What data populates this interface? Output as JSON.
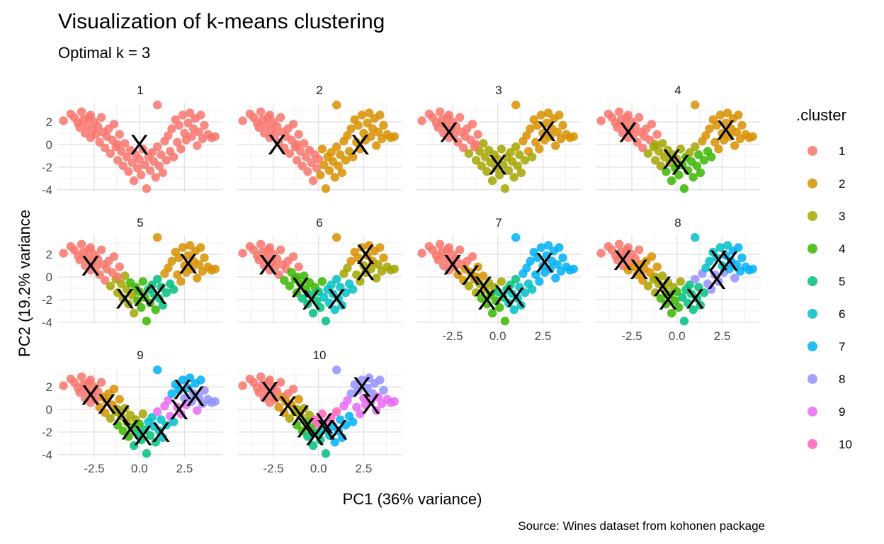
{
  "chart_data": {
    "type": "scatter",
    "title": "Visualization of k-means clustering",
    "subtitle": "Optimal k = 3",
    "xlabel": "PC1 (36% variance)",
    "ylabel": "PC2 (19.2% variance",
    "caption": "Source: Wines dataset from kohonen package",
    "xlim": [
      -4.5,
      4.6
    ],
    "ylim": [
      -4.2,
      3.7
    ],
    "x_ticks": [
      -2.5,
      0.0,
      2.5
    ],
    "x_tick_labels": [
      "-2.5",
      "0.0",
      "2.5"
    ],
    "y_ticks": [
      -4,
      -2,
      0,
      2
    ],
    "y_tick_labels": [
      "-4",
      "-2",
      "0",
      "2"
    ],
    "grid": true,
    "legend": {
      "title": ".cluster",
      "position": "right",
      "entries": [
        "1",
        "2",
        "3",
        "4",
        "5",
        "6",
        "7",
        "8",
        "9",
        "10"
      ]
    },
    "colors": [
      "#F8766D",
      "#D89000",
      "#A3A500",
      "#39B600",
      "#00BF7D",
      "#00BFC4",
      "#00B0F6",
      "#9590FF",
      "#E76BF3",
      "#FF62BC"
    ],
    "centroid_marker": "X",
    "panels": [
      {
        "label": "1",
        "centers": [
          [
            0.0,
            0.0
          ]
        ]
      },
      {
        "label": "2",
        "centers": [
          [
            -2.3,
            0.0
          ],
          [
            2.3,
            0.0
          ]
        ]
      },
      {
        "label": "3",
        "centers": [
          [
            -2.7,
            1.1
          ],
          [
            2.7,
            1.2
          ],
          [
            0.0,
            -1.8
          ]
        ]
      },
      {
        "label": "4",
        "centers": [
          [
            -2.7,
            1.1
          ],
          [
            2.7,
            1.3
          ],
          [
            -0.3,
            -1.3
          ],
          [
            0.2,
            -1.8
          ]
        ]
      },
      {
        "label": "5",
        "centers": [
          [
            -2.7,
            1.0
          ],
          [
            2.7,
            1.2
          ],
          [
            -0.8,
            -1.9
          ],
          [
            0.2,
            -1.7
          ],
          [
            1.0,
            -1.5
          ]
        ]
      },
      {
        "label": "6",
        "centers": [
          [
            -2.8,
            1.1
          ],
          [
            2.6,
            2.0
          ],
          [
            2.6,
            0.6
          ],
          [
            -1.0,
            -0.9
          ],
          [
            -0.4,
            -2.0
          ],
          [
            1.0,
            -1.9
          ]
        ]
      },
      {
        "label": "7",
        "centers": [
          [
            -2.5,
            1.1
          ],
          [
            -1.5,
            0.2
          ],
          [
            -0.8,
            -0.8
          ],
          [
            -0.6,
            -2.0
          ],
          [
            0.3,
            -1.6
          ],
          [
            1.0,
            -1.8
          ],
          [
            2.6,
            1.3
          ]
        ]
      },
      {
        "label": "8",
        "centers": [
          [
            -3.0,
            1.5
          ],
          [
            -2.1,
            0.7
          ],
          [
            -0.8,
            -0.8
          ],
          [
            -0.5,
            -2.0
          ],
          [
            1.0,
            -1.9
          ],
          [
            2.3,
            1.5
          ],
          [
            2.9,
            1.4
          ],
          [
            2.2,
            -0.2
          ]
        ]
      },
      {
        "label": "9",
        "centers": [
          [
            -2.7,
            1.3
          ],
          [
            -1.8,
            0.5
          ],
          [
            -1.0,
            -0.5
          ],
          [
            -0.5,
            -1.8
          ],
          [
            0.2,
            -2.3
          ],
          [
            1.2,
            -2.0
          ],
          [
            2.4,
            1.8
          ],
          [
            3.1,
            1.2
          ],
          [
            2.2,
            0.0
          ]
        ]
      },
      {
        "label": "10",
        "centers": [
          [
            -2.7,
            1.6
          ],
          [
            -1.7,
            0.3
          ],
          [
            -1.0,
            -0.5
          ],
          [
            -0.7,
            -1.6
          ],
          [
            -0.2,
            -2.3
          ],
          [
            0.4,
            -1.8
          ],
          [
            1.1,
            -1.8
          ],
          [
            2.4,
            2.0
          ],
          [
            2.9,
            0.5
          ],
          [
            0.3,
            -1.2
          ]
        ]
      }
    ],
    "points_note": "Each panel plots the same wine observations (PC1, PC2) colored by cluster assignment for that k; points listed below as [PC1, PC2].",
    "points": [
      [
        -4.2,
        2.1
      ],
      [
        -3.8,
        2.7
      ],
      [
        -3.6,
        2.4
      ],
      [
        -3.4,
        1.9
      ],
      [
        -3.3,
        1.5
      ],
      [
        -3.1,
        2.2
      ],
      [
        -3.0,
        1.0
      ],
      [
        -2.9,
        1.7
      ],
      [
        -2.8,
        2.4
      ],
      [
        -2.7,
        0.6
      ],
      [
        -2.6,
        1.3
      ],
      [
        -2.5,
        2.0
      ],
      [
        -2.4,
        0.9
      ],
      [
        -2.3,
        1.6
      ],
      [
        -2.2,
        0.2
      ],
      [
        -2.1,
        2.4
      ],
      [
        -2.0,
        1.1
      ],
      [
        -1.9,
        -0.3
      ],
      [
        -1.8,
        0.7
      ],
      [
        -1.7,
        1.4
      ],
      [
        -1.6,
        -0.8
      ],
      [
        -1.5,
        0.4
      ],
      [
        -1.4,
        1.8
      ],
      [
        -1.3,
        -0.2
      ],
      [
        -1.2,
        -1.4
      ],
      [
        -1.1,
        0.9
      ],
      [
        -1.0,
        -0.6
      ],
      [
        -0.9,
        -1.9
      ],
      [
        -0.8,
        0.1
      ],
      [
        -0.7,
        -1.1
      ],
      [
        -0.6,
        -2.4
      ],
      [
        -0.5,
        -0.5
      ],
      [
        -0.4,
        -1.6
      ],
      [
        -0.3,
        -3.2
      ],
      [
        -0.2,
        -0.9
      ],
      [
        -0.1,
        -2.1
      ],
      [
        0.0,
        -1.3
      ],
      [
        0.1,
        -2.7
      ],
      [
        0.2,
        -0.4
      ],
      [
        0.3,
        -1.8
      ],
      [
        0.4,
        -3.9
      ],
      [
        0.5,
        -1.1
      ],
      [
        0.6,
        -2.3
      ],
      [
        0.7,
        -0.7
      ],
      [
        0.8,
        -1.5
      ],
      [
        0.9,
        -2.9
      ],
      [
        1.0,
        3.5
      ],
      [
        1.0,
        -0.2
      ],
      [
        1.1,
        -1.9
      ],
      [
        1.2,
        -0.9
      ],
      [
        1.3,
        -2.5
      ],
      [
        1.4,
        0.3
      ],
      [
        1.5,
        -1.4
      ],
      [
        1.6,
        0.8
      ],
      [
        1.7,
        -0.6
      ],
      [
        1.8,
        1.4
      ],
      [
        1.9,
        -1.1
      ],
      [
        2.0,
        2.2
      ],
      [
        2.1,
        0.2
      ],
      [
        2.2,
        1.7
      ],
      [
        2.3,
        -0.4
      ],
      [
        2.4,
        2.6
      ],
      [
        2.5,
        1.0
      ],
      [
        2.6,
        0.4
      ],
      [
        2.7,
        1.9
      ],
      [
        2.8,
        2.8
      ],
      [
        2.9,
        0.7
      ],
      [
        3.0,
        1.4
      ],
      [
        3.1,
        2.3
      ],
      [
        3.2,
        -0.1
      ],
      [
        3.3,
        1.1
      ],
      [
        3.4,
        2.6
      ],
      [
        3.5,
        0.5
      ],
      [
        3.6,
        1.7
      ],
      [
        3.8,
        0.9
      ],
      [
        4.0,
        0.6
      ],
      [
        4.2,
        0.7
      ],
      [
        -3.2,
        2.9
      ],
      [
        -2.7,
        2.6
      ],
      [
        -1.2,
        0.0
      ]
    ]
  }
}
